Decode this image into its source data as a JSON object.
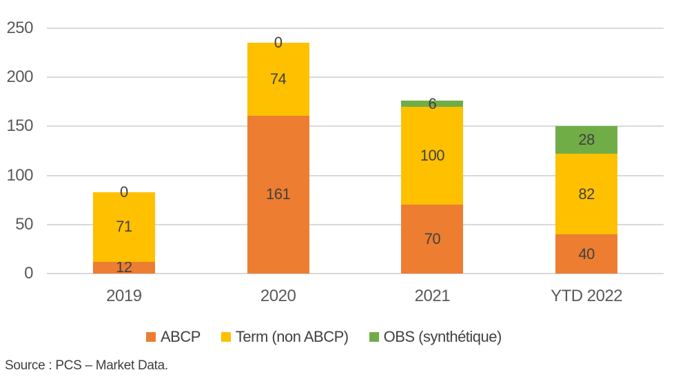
{
  "chart_data": {
    "type": "bar",
    "stacked": true,
    "title": "",
    "xlabel": "",
    "ylabel": "",
    "categories": [
      "2019",
      "2020",
      "2021",
      "YTD 2022"
    ],
    "series": [
      {
        "name": "ABCP",
        "color": "#ED7D31",
        "values": [
          12,
          161,
          70,
          40
        ]
      },
      {
        "name": "Term (non ABCP)",
        "color": "#FFC000",
        "values": [
          71,
          74,
          100,
          82
        ]
      },
      {
        "name": "OBS (synthétique)",
        "color": "#70AD47",
        "values": [
          0,
          0,
          6,
          28
        ]
      }
    ],
    "data_labels": true,
    "ylim": [
      0,
      250
    ],
    "yticks": [
      0,
      50,
      100,
      150,
      200,
      250
    ],
    "grid": true,
    "legend_position": "bottom"
  },
  "colors": {
    "gridline": "#d9d9d9",
    "axis_text": "#595959",
    "data_label_text": "#404040",
    "legend_text": "#404040",
    "source_text": "#3f3f3f",
    "background": "#ffffff"
  },
  "source": {
    "label": "Source : PCS – Market Data."
  }
}
